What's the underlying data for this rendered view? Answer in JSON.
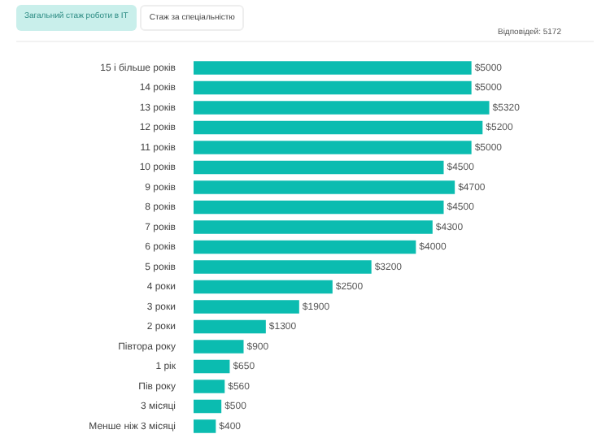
{
  "chart_data": {
    "type": "bar",
    "orientation": "horizontal",
    "annotations": [
      "Загальний стаж роботи в IT",
      "Стаж за спеціальністю",
      "Відповідей: 5172"
    ],
    "categories": [
      "15 і більше років",
      "14 років",
      "13 років",
      "12 років",
      "11 років",
      "10 років",
      "9 років",
      "8 років",
      "7 років",
      "6 років",
      "5 років",
      "4 роки",
      "3 роки",
      "2 роки",
      "Півтора року",
      "1 рік",
      "Пів року",
      "3 місяці",
      "Менше ніж 3 місяці"
    ],
    "values": [
      5000,
      5000,
      5320,
      5200,
      5000,
      4500,
      4700,
      4500,
      4300,
      4000,
      3200,
      2500,
      1900,
      1300,
      900,
      650,
      560,
      500,
      400
    ],
    "value_labels": [
      "$5000",
      "$5000",
      "$5320",
      "$5200",
      "$5000",
      "$4500",
      "$4700",
      "$4500",
      "$4300",
      "$4000",
      "$3200",
      "$2500",
      "$1900",
      "$1300",
      "$900",
      "$650",
      "$560",
      "$500",
      "$400"
    ],
    "color": "#0bbcb0",
    "legend": false,
    "tick_labels": "y"
  }
}
